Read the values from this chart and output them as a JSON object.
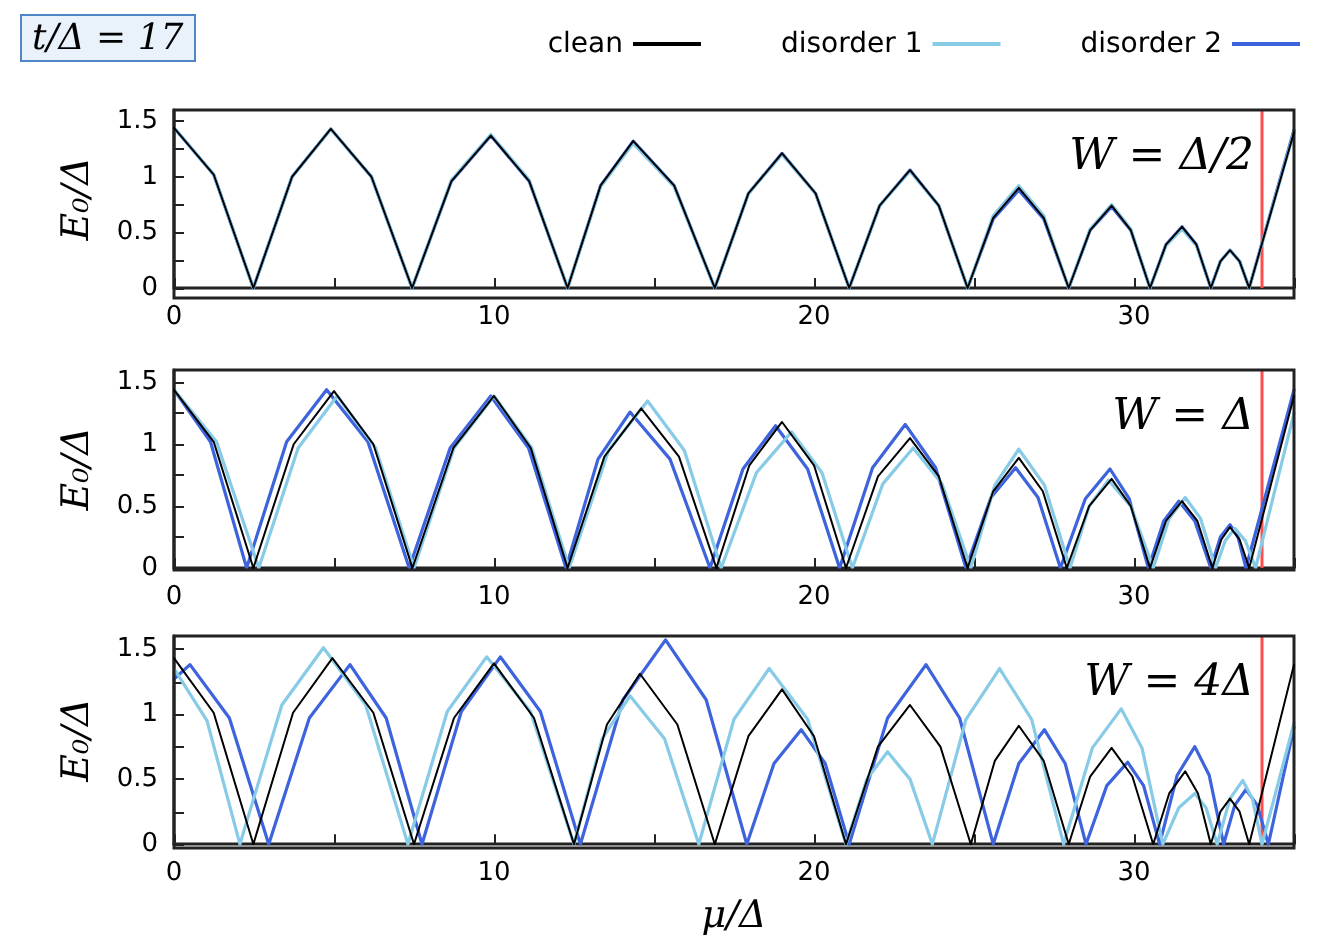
{
  "chart_data": [
    {
      "type": "line",
      "title": "t/Δ = 17",
      "ylabel": "E₀/Δ",
      "legend": "top right",
      "marker": "none",
      "line_style": "solid",
      "grid": false,
      "annotations": [
        "W = Δ/2"
      ],
      "xlim": [
        0,
        35
      ],
      "xticks": [
        0,
        {
          "value": 5,
          "label": null
        },
        10,
        {
          "value": 15,
          "label": null
        },
        20,
        {
          "value": 25,
          "label": null
        },
        30,
        {
          "value": 35,
          "label": null
        }
      ],
      "ylim": [
        0,
        1.6
      ],
      "yticks": [
        0,
        {
          "value": 0.25,
          "label": null
        },
        0.5,
        {
          "value": 0.75,
          "label": null
        },
        1,
        {
          "value": 1.25,
          "label": null
        },
        1.5
      ],
      "ref_lines": [
        {
          "axis": "x",
          "value": 34,
          "color": "#ff4d4d"
        }
      ],
      "series": [
        {
          "name": "clean",
          "color": "#000000",
          "x": [
            0,
            1.24,
            2.48,
            3.69,
            4.9,
            6.17,
            7.44,
            8.67,
            9.9,
            11.1,
            12.3,
            13.33,
            14.35,
            15.63,
            16.9,
            17.95,
            19.0,
            20.05,
            21.1,
            22.05,
            23.0,
            23.9,
            24.8,
            25.6,
            26.4,
            27.18,
            27.96,
            28.63,
            29.3,
            29.9,
            30.5,
            31.0,
            31.5,
            31.95,
            32.4,
            32.7,
            33.0,
            33.3,
            33.6,
            35
          ],
          "values": [
            1.44,
            1.02,
            0,
            1.0,
            1.43,
            1.0,
            0,
            0.96,
            1.37,
            0.96,
            0,
            0.92,
            1.32,
            0.92,
            0,
            0.85,
            1.21,
            0.85,
            0,
            0.74,
            1.06,
            0.74,
            0,
            0.63,
            0.9,
            0.63,
            0,
            0.52,
            0.74,
            0.52,
            0,
            0.39,
            0.55,
            0.39,
            0,
            0.24,
            0.34,
            0.24,
            0,
            1.4
          ]
        },
        {
          "name": "disorder 1",
          "color": "#87cbe6",
          "x": [
            0,
            1.24,
            2.48,
            3.69,
            4.9,
            6.17,
            7.44,
            8.67,
            9.9,
            11.1,
            12.3,
            13.33,
            14.35,
            15.63,
            16.9,
            17.95,
            19.0,
            20.05,
            21.1,
            22.05,
            23.0,
            23.9,
            24.8,
            25.6,
            26.4,
            27.18,
            27.96,
            28.63,
            29.3,
            29.9,
            30.5,
            31.0,
            31.5,
            31.95,
            32.4,
            32.7,
            33.0,
            33.3,
            33.6,
            35
          ],
          "values": [
            1.44,
            1.02,
            0,
            1.0,
            1.43,
            1.0,
            0,
            0.97,
            1.38,
            0.97,
            0,
            0.91,
            1.3,
            0.91,
            0,
            0.85,
            1.2,
            0.85,
            0,
            0.74,
            1.05,
            0.74,
            0,
            0.65,
            0.92,
            0.65,
            0,
            0.53,
            0.75,
            0.53,
            0,
            0.38,
            0.53,
            0.38,
            0,
            0.24,
            0.34,
            0.24,
            0,
            1.4
          ]
        },
        {
          "name": "disorder 2",
          "color": "#3d63dd",
          "x": [
            0,
            1.24,
            2.48,
            3.69,
            4.9,
            6.17,
            7.44,
            8.67,
            9.9,
            11.1,
            12.3,
            13.33,
            14.35,
            15.63,
            16.9,
            17.95,
            19.0,
            20.05,
            21.1,
            22.05,
            23.0,
            23.9,
            24.8,
            25.6,
            26.4,
            27.18,
            27.96,
            28.63,
            29.3,
            29.9,
            30.5,
            31.0,
            31.5,
            31.95,
            32.4,
            32.7,
            33.0,
            33.3,
            33.6,
            35
          ],
          "values": [
            1.44,
            1.02,
            0,
            1.0,
            1.43,
            1.0,
            0,
            0.96,
            1.37,
            0.96,
            0,
            0.92,
            1.32,
            0.92,
            0,
            0.85,
            1.21,
            0.85,
            0,
            0.74,
            1.06,
            0.74,
            0,
            0.62,
            0.88,
            0.62,
            0,
            0.52,
            0.73,
            0.52,
            0,
            0.39,
            0.55,
            0.39,
            0,
            0.24,
            0.34,
            0.24,
            0,
            1.42
          ]
        }
      ]
    },
    {
      "type": "line",
      "ylabel": "E₀/Δ",
      "marker": "none",
      "line_style": "solid",
      "grid": false,
      "annotations": [
        "W = Δ"
      ],
      "xlim": [
        0,
        35
      ],
      "xticks": [
        0,
        {
          "value": 5,
          "label": null
        },
        10,
        {
          "value": 15,
          "label": null
        },
        20,
        {
          "value": 25,
          "label": null
        },
        30,
        {
          "value": 35,
          "label": null
        }
      ],
      "ylim": [
        0,
        1.6
      ],
      "yticks": [
        0,
        {
          "value": 0.25,
          "label": null
        },
        0.5,
        {
          "value": 0.75,
          "label": null
        },
        1,
        {
          "value": 1.25,
          "label": null
        },
        1.5
      ],
      "ref_lines": [
        {
          "axis": "x",
          "value": 34,
          "color": "#ff4d4d"
        }
      ],
      "series": [
        {
          "color": "#000000",
          "x": [
            0,
            1.24,
            2.48,
            3.74,
            5.0,
            6.23,
            7.45,
            8.73,
            10.0,
            11.15,
            12.3,
            13.45,
            14.6,
            15.78,
            16.95,
            17.98,
            19.0,
            20.0,
            21.0,
            22.0,
            23.0,
            23.9,
            24.8,
            25.6,
            26.4,
            27.15,
            27.9,
            28.6,
            29.3,
            29.9,
            30.5,
            31.0,
            31.5,
            31.98,
            32.45,
            32.73,
            33.0,
            33.3,
            33.6,
            35
          ],
          "values": [
            1.44,
            1.02,
            0,
            1.0,
            1.43,
            1.0,
            0,
            0.97,
            1.39,
            0.97,
            0,
            0.9,
            1.29,
            0.9,
            0,
            0.83,
            1.18,
            0.83,
            0,
            0.74,
            1.05,
            0.74,
            0,
            0.62,
            0.89,
            0.62,
            0,
            0.5,
            0.72,
            0.5,
            0,
            0.38,
            0.54,
            0.38,
            0,
            0.23,
            0.33,
            0.23,
            0,
            1.39
          ]
        },
        {
          "color": "#87cbe6",
          "x": [
            0,
            1.33,
            2.65,
            3.88,
            5.1,
            6.3,
            7.5,
            8.75,
            10.0,
            11.18,
            12.35,
            13.58,
            14.8,
            15.95,
            17.1,
            18.2,
            19.3,
            20.25,
            21.2,
            22.15,
            23.1,
            24.0,
            24.9,
            25.65,
            26.4,
            27.2,
            28.0,
            28.6,
            29.2,
            29.9,
            30.6,
            31.1,
            31.6,
            32.08,
            32.55,
            32.85,
            33.15,
            33.48,
            33.8,
            35
          ],
          "values": [
            1.44,
            1.02,
            0,
            0.97,
            1.39,
            0.97,
            0,
            0.97,
            1.39,
            0.97,
            0,
            0.95,
            1.35,
            0.95,
            0,
            0.77,
            1.1,
            0.77,
            0,
            0.68,
            0.97,
            0.68,
            0,
            0.67,
            0.96,
            0.67,
            0,
            0.5,
            0.71,
            0.5,
            0,
            0.4,
            0.57,
            0.4,
            0,
            0.22,
            0.32,
            0.22,
            0,
            1.25
          ]
        },
        {
          "color": "#3d63dd",
          "x": [
            0,
            1.14,
            2.27,
            3.52,
            4.77,
            6.06,
            7.35,
            8.63,
            9.9,
            11.08,
            12.25,
            13.25,
            14.25,
            15.5,
            16.75,
            17.78,
            18.8,
            19.8,
            20.8,
            21.83,
            22.85,
            23.8,
            24.75,
            25.53,
            26.3,
            27.0,
            27.7,
            28.48,
            29.25,
            29.85,
            30.45,
            30.93,
            31.4,
            31.9,
            32.4,
            32.7,
            33.0,
            33.25,
            33.5,
            35
          ],
          "values": [
            1.44,
            1.02,
            0,
            1.02,
            1.44,
            1.02,
            0,
            0.97,
            1.39,
            0.97,
            0,
            0.88,
            1.26,
            0.88,
            0,
            0.8,
            1.15,
            0.8,
            0,
            0.81,
            1.16,
            0.81,
            0,
            0.57,
            0.81,
            0.57,
            0,
            0.56,
            0.8,
            0.56,
            0,
            0.38,
            0.54,
            0.38,
            0,
            0.25,
            0.35,
            0.25,
            0,
            1.44
          ]
        }
      ]
    },
    {
      "type": "line",
      "xlabel": "μ/Δ",
      "ylabel": "E₀/Δ",
      "marker": "none",
      "line_style": "solid",
      "grid": false,
      "annotations": [
        "W = 4Δ"
      ],
      "xlim": [
        0,
        35
      ],
      "xticks": [
        0,
        {
          "value": 5,
          "label": null
        },
        10,
        {
          "value": 15,
          "label": null
        },
        20,
        {
          "value": 25,
          "label": null
        },
        30,
        {
          "value": 35,
          "label": null
        }
      ],
      "ylim": [
        0,
        1.6
      ],
      "yticks": [
        0,
        {
          "value": 0.25,
          "label": null
        },
        0.5,
        {
          "value": 0.75,
          "label": null
        },
        1,
        {
          "value": 1.25,
          "label": null
        },
        1.5
      ],
      "ref_lines": [
        {
          "axis": "x",
          "value": 34,
          "color": "#ff4d4d"
        }
      ],
      "series": [
        {
          "color": "#000000",
          "x": [
            0,
            1.24,
            2.48,
            3.72,
            4.95,
            6.23,
            7.5,
            8.75,
            10.0,
            11.25,
            12.5,
            13.53,
            14.56,
            15.73,
            16.9,
            17.95,
            19.0,
            20.0,
            21.0,
            22.0,
            23.0,
            23.95,
            24.9,
            25.65,
            26.4,
            27.18,
            27.96,
            28.63,
            29.3,
            29.95,
            30.6,
            31.1,
            31.6,
            32.0,
            32.4,
            32.7,
            33.0,
            33.3,
            33.6,
            35
          ],
          "values": [
            1.43,
            1.01,
            0,
            1.01,
            1.43,
            1.01,
            0,
            0.97,
            1.39,
            0.97,
            0,
            0.92,
            1.31,
            0.92,
            0,
            0.83,
            1.19,
            0.83,
            0,
            0.75,
            1.07,
            0.75,
            0,
            0.64,
            0.91,
            0.64,
            0,
            0.52,
            0.74,
            0.52,
            0,
            0.39,
            0.56,
            0.39,
            0,
            0.25,
            0.35,
            0.25,
            0,
            1.38
          ]
        },
        {
          "color": "#87cbe6",
          "x": [
            0,
            1.03,
            2.06,
            3.37,
            4.67,
            5.99,
            7.31,
            8.54,
            9.77,
            11.14,
            12.5,
            13.38,
            14.25,
            15.33,
            16.4,
            17.5,
            18.6,
            19.8,
            21.0,
            21.65,
            22.3,
            23.0,
            23.7,
            24.75,
            25.8,
            26.8,
            27.8,
            28.7,
            29.6,
            30.25,
            30.9,
            31.4,
            31.9,
            32.25,
            32.6,
            33.0,
            33.4,
            33.7,
            34.0,
            35
          ],
          "values": [
            1.35,
            0.95,
            0,
            1.07,
            1.51,
            1.07,
            0,
            1.02,
            1.44,
            1.02,
            0,
            0.81,
            1.14,
            0.81,
            0,
            0.96,
            1.35,
            0.96,
            0,
            0.5,
            0.71,
            0.5,
            0,
            0.96,
            1.35,
            0.96,
            0,
            0.74,
            1.04,
            0.74,
            0,
            0.28,
            0.39,
            0.28,
            0,
            0.35,
            0.49,
            0.35,
            0,
            0.93
          ]
        },
        {
          "color": "#3d63dd",
          "x": [
            0,
            0.5,
            1.73,
            2.96,
            4.23,
            5.5,
            6.63,
            7.75,
            8.98,
            10.2,
            11.45,
            12.7,
            14.03,
            15.36,
            16.63,
            17.9,
            18.75,
            19.6,
            20.35,
            21.1,
            22.3,
            23.5,
            24.55,
            25.6,
            26.4,
            27.2,
            27.85,
            28.5,
            29.15,
            29.8,
            30.3,
            30.8,
            31.35,
            31.9,
            32.35,
            32.8,
            33.15,
            33.5,
            33.85,
            34.2,
            35
          ],
          "values": [
            1.27,
            1.38,
            0.97,
            0,
            0.97,
            1.38,
            0.97,
            0,
            1.02,
            1.44,
            1.02,
            0,
            1.11,
            1.57,
            1.11,
            0,
            0.62,
            0.88,
            0.62,
            0,
            0.97,
            1.38,
            0.97,
            0,
            0.62,
            0.88,
            0.62,
            0,
            0.45,
            0.63,
            0.45,
            0,
            0.53,
            0.75,
            0.53,
            0,
            0.3,
            0.42,
            0.3,
            0,
            0.9
          ]
        }
      ]
    }
  ]
}
